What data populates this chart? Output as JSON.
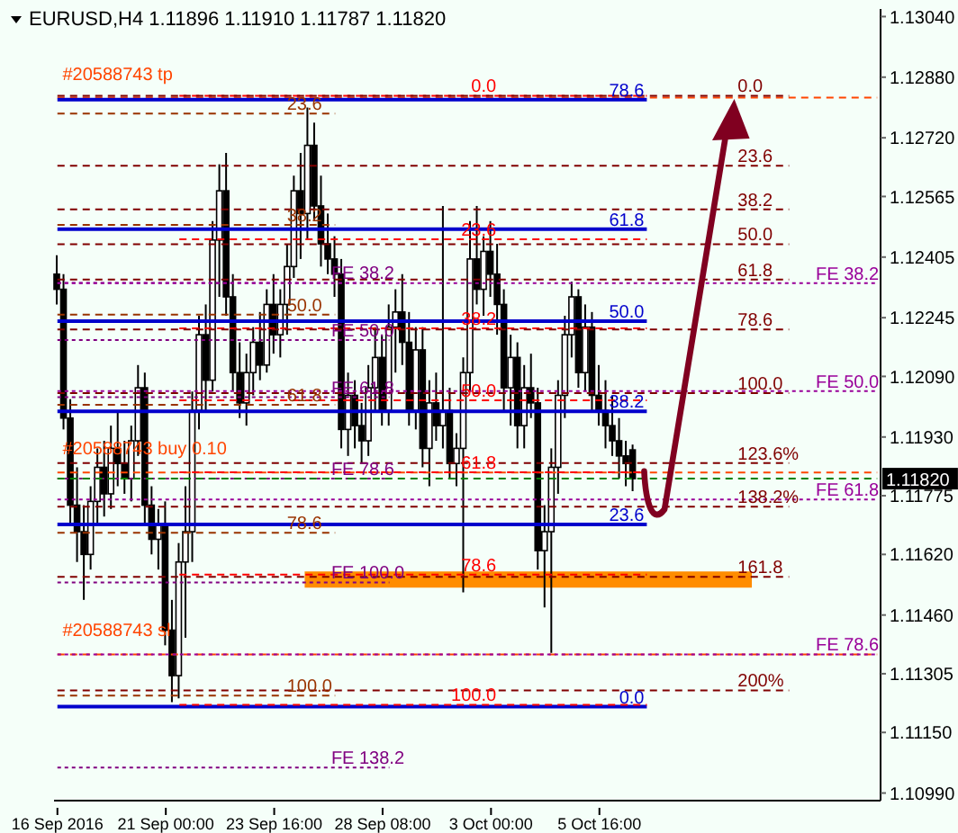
{
  "chart_data": {
    "type": "candlestick",
    "title": "EURUSD,H4  1.11896 1.11910 1.11787 1.11820",
    "categories": [
      "16 Sep 2016",
      null,
      null,
      null,
      null,
      null,
      null,
      null,
      null,
      null,
      null,
      null,
      null,
      null,
      null,
      null,
      "21 Sep 00:00",
      null,
      null,
      null,
      null,
      null,
      null,
      null,
      null,
      null,
      null,
      null,
      null,
      null,
      null,
      null,
      "23 Sep 16:00",
      null,
      null,
      null,
      null,
      null,
      null,
      null,
      null,
      null,
      null,
      null,
      null,
      null,
      null,
      null,
      "28 Sep 08:00",
      null,
      null,
      null,
      null,
      null,
      null,
      null,
      null,
      null,
      null,
      null,
      null,
      null,
      null,
      null,
      "3 Oct 00:00",
      null,
      null,
      null,
      null,
      null,
      null,
      null,
      null,
      null,
      null,
      null,
      null,
      null,
      null,
      null,
      "5 Oct 16:00",
      null,
      null,
      null,
      null,
      null,
      null,
      null,
      null,
      null,
      null,
      null,
      null,
      null,
      null,
      null,
      null,
      null,
      null,
      null,
      null,
      null,
      null,
      null,
      null,
      null,
      null,
      null,
      null,
      null,
      null,
      null,
      null,
      null,
      null,
      null,
      null,
      null,
      null,
      null,
      null,
      null
    ],
    "ohlc": [
      [
        1.1236,
        1.1241,
        1.1228,
        1.1232
      ],
      [
        1.1232,
        1.1236,
        1.1195,
        1.1198
      ],
      [
        1.1198,
        1.1203,
        1.117,
        1.1175
      ],
      [
        1.1175,
        1.1185,
        1.116,
        1.1168
      ],
      [
        1.1168,
        1.1175,
        1.115,
        1.1162
      ],
      [
        1.1162,
        1.118,
        1.1158,
        1.1176
      ],
      [
        1.1176,
        1.119,
        1.117,
        1.1185
      ],
      [
        1.1185,
        1.1192,
        1.1172,
        1.1178
      ],
      [
        1.1178,
        1.1196,
        1.1174,
        1.119
      ],
      [
        1.119,
        1.12,
        1.118,
        1.1186
      ],
      [
        1.1186,
        1.1192,
        1.1178,
        1.1182
      ],
      [
        1.1182,
        1.1196,
        1.1176,
        1.1192
      ],
      [
        1.1192,
        1.1212,
        1.1188,
        1.1206
      ],
      [
        1.1206,
        1.121,
        1.117,
        1.1175
      ],
      [
        1.1175,
        1.118,
        1.1162,
        1.1166
      ],
      [
        1.1166,
        1.1174,
        1.1158,
        1.117
      ],
      [
        1.117,
        1.1176,
        1.1138,
        1.1142
      ],
      [
        1.1142,
        1.115,
        1.1123,
        1.113
      ],
      [
        1.113,
        1.1165,
        1.1124,
        1.116
      ],
      [
        1.116,
        1.118,
        1.114,
        1.1168
      ],
      [
        1.1168,
        1.1205,
        1.116,
        1.12
      ],
      [
        1.12,
        1.1225,
        1.1195,
        1.122
      ],
      [
        1.122,
        1.1228,
        1.12,
        1.1208
      ],
      [
        1.1208,
        1.125,
        1.1205,
        1.1245
      ],
      [
        1.1245,
        1.1265,
        1.123,
        1.1258
      ],
      [
        1.1258,
        1.1268,
        1.1225,
        1.123
      ],
      [
        1.123,
        1.1236,
        1.1205,
        1.121
      ],
      [
        1.121,
        1.1218,
        1.1198,
        1.1202
      ],
      [
        1.1202,
        1.1215,
        1.1196,
        1.121
      ],
      [
        1.121,
        1.1222,
        1.1204,
        1.1218
      ],
      [
        1.1218,
        1.1226,
        1.1208,
        1.1212
      ],
      [
        1.1212,
        1.1232,
        1.121,
        1.1228
      ],
      [
        1.1228,
        1.1236,
        1.1215,
        1.122
      ],
      [
        1.122,
        1.1232,
        1.1214,
        1.1228
      ],
      [
        1.1228,
        1.1244,
        1.122,
        1.1238
      ],
      [
        1.1238,
        1.1262,
        1.1235,
        1.1258
      ],
      [
        1.1258,
        1.1268,
        1.124,
        1.1252
      ],
      [
        1.1252,
        1.128,
        1.1245,
        1.127
      ],
      [
        1.127,
        1.1276,
        1.125,
        1.1254
      ],
      [
        1.1254,
        1.1262,
        1.1238,
        1.1244
      ],
      [
        1.1244,
        1.1252,
        1.1236,
        1.124
      ],
      [
        1.124,
        1.1246,
        1.123,
        1.1236
      ],
      [
        1.1236,
        1.124,
        1.119,
        1.1195
      ],
      [
        1.1195,
        1.121,
        1.1188,
        1.1204
      ],
      [
        1.1204,
        1.1208,
        1.119,
        1.1196
      ],
      [
        1.1196,
        1.1202,
        1.1186,
        1.1192
      ],
      [
        1.1192,
        1.1212,
        1.1188,
        1.1206
      ],
      [
        1.1206,
        1.1222,
        1.12,
        1.1214
      ],
      [
        1.1214,
        1.122,
        1.1196,
        1.12
      ],
      [
        1.12,
        1.1228,
        1.1196,
        1.1222
      ],
      [
        1.1222,
        1.1232,
        1.121,
        1.1226
      ],
      [
        1.1226,
        1.1236,
        1.1212,
        1.1218
      ],
      [
        1.1218,
        1.1226,
        1.1196,
        1.12
      ],
      [
        1.12,
        1.1222,
        1.1195,
        1.1216
      ],
      [
        1.1216,
        1.1222,
        1.1185,
        1.119
      ],
      [
        1.119,
        1.1208,
        1.118,
        1.1202
      ],
      [
        1.1202,
        1.121,
        1.1192,
        1.1196
      ],
      [
        1.1196,
        1.1254,
        1.119,
        1.12
      ],
      [
        1.12,
        1.1206,
        1.1182,
        1.1186
      ],
      [
        1.1186,
        1.1194,
        1.118,
        1.119
      ],
      [
        1.119,
        1.1214,
        1.1152,
        1.121
      ],
      [
        1.121,
        1.125,
        1.1205,
        1.124
      ],
      [
        1.124,
        1.1254,
        1.1228,
        1.1232
      ],
      [
        1.1232,
        1.1246,
        1.1225,
        1.1242
      ],
      [
        1.1242,
        1.125,
        1.123,
        1.1236
      ],
      [
        1.1236,
        1.1244,
        1.122,
        1.1228
      ],
      [
        1.1228,
        1.1232,
        1.12,
        1.1206
      ],
      [
        1.1206,
        1.122,
        1.1196,
        1.1214
      ],
      [
        1.1214,
        1.1218,
        1.119,
        1.1196
      ],
      [
        1.1196,
        1.1212,
        1.119,
        1.1206
      ],
      [
        1.1206,
        1.1215,
        1.1198,
        1.1202
      ],
      [
        1.1202,
        1.1206,
        1.1158,
        1.1163
      ],
      [
        1.1163,
        1.1175,
        1.1148,
        1.1168
      ],
      [
        1.1168,
        1.119,
        1.1136,
        1.1185
      ],
      [
        1.1185,
        1.1208,
        1.1178,
        1.1204
      ],
      [
        1.1204,
        1.1225,
        1.1198,
        1.122
      ],
      [
        1.122,
        1.1234,
        1.1214,
        1.123
      ],
      [
        1.123,
        1.1232,
        1.1206,
        1.121
      ],
      [
        1.121,
        1.1228,
        1.1205,
        1.1222
      ],
      [
        1.1222,
        1.1226,
        1.12,
        1.1204
      ],
      [
        1.1204,
        1.1212,
        1.1196,
        1.12
      ],
      [
        1.12,
        1.1208,
        1.119,
        1.1196
      ],
      [
        1.1196,
        1.1204,
        1.1188,
        1.1192
      ],
      [
        1.1192,
        1.1198,
        1.1182,
        1.1188
      ],
      [
        1.1188,
        1.1192,
        1.118,
        1.1186
      ],
      [
        1.11896,
        1.1191,
        1.11787,
        1.1182
      ],
      null,
      null,
      null,
      null,
      null,
      null,
      null,
      null,
      null,
      null,
      null,
      null,
      null,
      null,
      null,
      null,
      null,
      null,
      null,
      null,
      null,
      null,
      null,
      null,
      null,
      null,
      null,
      null,
      null,
      null,
      null,
      null,
      null,
      null,
      null,
      null
    ],
    "ylim": [
      1.1097,
      1.1306
    ],
    "yticks": [
      {
        "value": 1.1304,
        "label": "1.13040"
      },
      {
        "value": 1.1288,
        "label": "1.12880"
      },
      {
        "value": 1.1272,
        "label": "1.12720"
      },
      {
        "value": 1.12565,
        "label": "1.12565"
      },
      {
        "value": 1.12405,
        "label": "1.12405"
      },
      {
        "value": 1.12245,
        "label": "1.12245"
      },
      {
        "value": 1.1209,
        "label": "1.12090"
      },
      {
        "value": 1.1193,
        "label": "1.11930"
      },
      {
        "value": 1.11775,
        "label": "1.11775"
      },
      {
        "value": 1.1162,
        "label": "1.11620"
      },
      {
        "value": 1.1146,
        "label": "1.11460"
      },
      {
        "value": 1.11305,
        "label": "1.11305"
      },
      {
        "value": 1.1115,
        "label": "1.11150"
      },
      {
        "value": 1.1099,
        "label": "1.10990"
      }
    ],
    "ref_lines": [
      {
        "axis": "y",
        "value": 1.12826,
        "label": "#20588743 tp",
        "color": "#ff4500",
        "line_style": "dashed"
      },
      {
        "axis": "y",
        "value": 1.11836,
        "label": "#20588743 buy 0.10",
        "color": "#ff4500",
        "line_style": "dashed"
      },
      {
        "axis": "y",
        "value": 1.11356,
        "label": "#20588743 sl",
        "color": "#ff4500",
        "line_style": "dashed"
      },
      {
        "axis": "y",
        "value": 1.12821,
        "color": "#0000cc",
        "line_style": "solid"
      },
      {
        "axis": "y",
        "value": 1.12479,
        "color": "#0000cc",
        "line_style": "solid"
      },
      {
        "axis": "y",
        "value": 1.12236,
        "color": "#0000cc",
        "line_style": "solid"
      },
      {
        "axis": "y",
        "value": 1.11998,
        "color": "#0000cc",
        "line_style": "solid"
      },
      {
        "axis": "y",
        "value": 1.11699,
        "color": "#0000cc",
        "line_style": "solid"
      },
      {
        "axis": "y",
        "value": 1.11218,
        "color": "#0000cc",
        "line_style": "solid"
      },
      {
        "axis": "y",
        "value": 1.12831,
        "color": "#ff0000",
        "line_style": "dashed"
      },
      {
        "axis": "y",
        "value": 1.12452,
        "color": "#ff0000",
        "line_style": "dashed"
      },
      {
        "axis": "y",
        "value": 1.12217,
        "color": "#ff0000",
        "line_style": "dashed"
      },
      {
        "axis": "y",
        "value": 1.12027,
        "color": "#ff0000",
        "line_style": "dashed"
      },
      {
        "axis": "y",
        "value": 1.11837,
        "color": "#ff0000",
        "line_style": "dashed"
      },
      {
        "axis": "y",
        "value": 1.11567,
        "color": "#ff0000",
        "line_style": "dashed"
      },
      {
        "axis": "y",
        "value": 1.11223,
        "color": "#ff0000",
        "line_style": "dashed"
      },
      {
        "axis": "y",
        "value": 1.12831,
        "color": "#800000",
        "line_style": "dashed"
      },
      {
        "axis": "y",
        "value": 1.12646,
        "color": "#800000",
        "line_style": "dashed"
      },
      {
        "axis": "y",
        "value": 1.12531,
        "color": "#800000",
        "line_style": "dashed"
      },
      {
        "axis": "y",
        "value": 1.12439,
        "color": "#800000",
        "line_style": "dashed"
      },
      {
        "axis": "y",
        "value": 1.12346,
        "color": "#800000",
        "line_style": "dashed"
      },
      {
        "axis": "y",
        "value": 1.12214,
        "color": "#800000",
        "line_style": "dashed"
      },
      {
        "axis": "y",
        "value": 1.12046,
        "color": "#800000",
        "line_style": "dashed"
      },
      {
        "axis": "y",
        "value": 1.11861,
        "color": "#800000",
        "line_style": "dashed"
      },
      {
        "axis": "y",
        "value": 1.11746,
        "color": "#800000",
        "line_style": "dashed"
      },
      {
        "axis": "y",
        "value": 1.11561,
        "color": "#800000",
        "line_style": "dashed"
      },
      {
        "axis": "y",
        "value": 1.11261,
        "color": "#800000",
        "line_style": "dashed"
      },
      {
        "axis": "y",
        "value": 1.12784,
        "color": "#993300",
        "line_style": "dashed"
      },
      {
        "axis": "y",
        "value": 1.1249,
        "color": "#993300",
        "line_style": "dashed"
      },
      {
        "axis": "y",
        "value": 1.12253,
        "color": "#993300",
        "line_style": "dashed"
      },
      {
        "axis": "y",
        "value": 1.12015,
        "color": "#993300",
        "line_style": "dashed"
      },
      {
        "axis": "y",
        "value": 1.11677,
        "color": "#993300",
        "line_style": "dashed"
      },
      {
        "axis": "y",
        "value": 1.11247,
        "color": "#993300",
        "line_style": "dashed"
      },
      {
        "axis": "y",
        "value": 1.12337,
        "color": "#800080",
        "line_style": "dotted"
      },
      {
        "axis": "y",
        "value": 1.12186,
        "color": "#800080",
        "line_style": "dotted"
      },
      {
        "axis": "y",
        "value": 1.12035,
        "color": "#800080",
        "line_style": "dotted"
      },
      {
        "axis": "y",
        "value": 1.1182,
        "color": "#800080",
        "line_style": "dotted"
      },
      {
        "axis": "y",
        "value": 1.11546,
        "color": "#800080",
        "line_style": "dotted"
      },
      {
        "axis": "y",
        "value": 1.11057,
        "color": "#800080",
        "line_style": "dotted"
      },
      {
        "axis": "y",
        "value": 1.12336,
        "color": "#990099",
        "line_style": "dotted"
      },
      {
        "axis": "y",
        "value": 1.12051,
        "color": "#990099",
        "line_style": "dotted"
      },
      {
        "axis": "y",
        "value": 1.11765,
        "color": "#990099",
        "line_style": "dotted"
      },
      {
        "axis": "y",
        "value": 1.11356,
        "color": "#990099",
        "line_style": "dotted"
      },
      {
        "axis": "y",
        "value": 1.1182,
        "label": "1.11820",
        "color": "#008000",
        "line_style": "dashed"
      }
    ],
    "annotations": [
      {
        "text": "78.6",
        "y": 1.12821
      },
      {
        "text": "61.8",
        "y": 1.12479
      },
      {
        "text": "50.0",
        "y": 1.12236
      },
      {
        "text": "38.2",
        "y": 1.11998
      },
      {
        "text": "23.6",
        "y": 1.11699
      },
      {
        "text": "0.0",
        "y": 1.11218
      },
      {
        "text": "0.0",
        "y": 1.12831
      },
      {
        "text": "23.6",
        "y": 1.12452
      },
      {
        "text": "38.2",
        "y": 1.12217
      },
      {
        "text": "50.0",
        "y": 1.12027
      },
      {
        "text": "61.8",
        "y": 1.11837
      },
      {
        "text": "78.6",
        "y": 1.11567
      },
      {
        "text": "100.0",
        "y": 1.11223
      },
      {
        "text": "0.0",
        "y": 1.12831
      },
      {
        "text": "23.6",
        "y": 1.12646
      },
      {
        "text": "38.2",
        "y": 1.12531
      },
      {
        "text": "50.0",
        "y": 1.12439
      },
      {
        "text": "61.8",
        "y": 1.12346
      },
      {
        "text": "78.6",
        "y": 1.12214
      },
      {
        "text": "100.0",
        "y": 1.12046
      },
      {
        "text": "123.6%",
        "y": 1.11861
      },
      {
        "text": "138.2%",
        "y": 1.11746
      },
      {
        "text": "161.8",
        "y": 1.11561
      },
      {
        "text": "200%",
        "y": 1.11261
      },
      {
        "text": "23.6",
        "y": 1.12784
      },
      {
        "text": "38.2",
        "y": 1.1249
      },
      {
        "text": "50.0",
        "y": 1.12253
      },
      {
        "text": "61.8",
        "y": 1.12015
      },
      {
        "text": "78.6",
        "y": 1.11677
      },
      {
        "text": "100.0",
        "y": 1.11247
      },
      {
        "text": "FE 38.2",
        "y": 1.12337
      },
      {
        "text": "FE 50.0",
        "y": 1.12186
      },
      {
        "text": "FE 61.8",
        "y": 1.12035
      },
      {
        "text": "FE 78.6",
        "y": 1.1182
      },
      {
        "text": "FE 100.0",
        "y": 1.11546
      },
      {
        "text": "FE 138.2",
        "y": 1.11057
      },
      {
        "text": "FE 38.2",
        "y": 1.12336
      },
      {
        "text": "FE 50.0",
        "y": 1.12051
      },
      {
        "text": "FE 61.8",
        "y": 1.11765
      },
      {
        "text": "FE 78.6",
        "y": 1.11356
      }
    ],
    "bands": [
      {
        "axis": "y",
        "from": 1.11532,
        "to": 1.11575,
        "color": "#ff8c00"
      }
    ]
  }
}
